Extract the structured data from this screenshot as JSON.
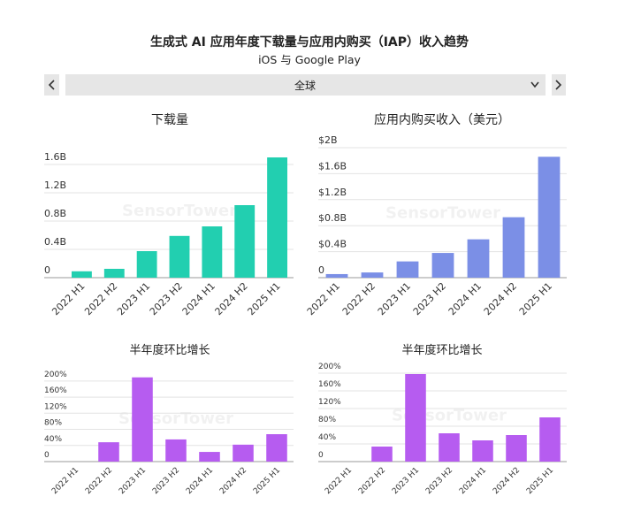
{
  "header": {
    "title": "生成式 AI 应用年度下载量与应用内购买（IAP）收入趋势",
    "subtitle": "iOS 与 Google Play"
  },
  "filter": {
    "region": "全球"
  },
  "watermark": "SensorTower",
  "chart_data": [
    {
      "type": "bar",
      "title": "下载量",
      "color": "#22cfb0",
      "categories": [
        "2022 H1",
        "2022 H2",
        "2023 H1",
        "2023 H2",
        "2024 H1",
        "2024 H2",
        "2025 H1"
      ],
      "values": [
        0.09,
        0.125,
        0.375,
        0.59,
        0.725,
        1.025,
        1.7
      ],
      "ylim": [
        0,
        1.9
      ],
      "yticks": [
        0,
        {
          "value": 0.4,
          "label": "0.4B"
        },
        {
          "value": 0.8,
          "label": "0.8B"
        },
        {
          "value": 1.2,
          "label": "1.2B"
        },
        {
          "value": 1.6,
          "label": "1.6B"
        }
      ],
      "grid": true
    },
    {
      "type": "bar",
      "title": "应用内购买收入（美元）",
      "color": "#7b8fe6",
      "categories": [
        "2022 H1",
        "2022 H2",
        "2023 H1",
        "2023 H2",
        "2024 H1",
        "2024 H2",
        "2025 H1"
      ],
      "values": [
        0.055,
        0.08,
        0.25,
        0.38,
        0.59,
        0.93,
        1.86
      ],
      "ylim": [
        0,
        2
      ],
      "yticks": [
        0,
        {
          "value": 0.4,
          "label": "$0.4B"
        },
        {
          "value": 0.8,
          "label": "$0.8B"
        },
        {
          "value": 1.2,
          "label": "$1.2B"
        },
        {
          "value": 1.6,
          "label": "$1.6B"
        },
        {
          "value": 2,
          "label": "$2B"
        }
      ],
      "grid": true
    },
    {
      "type": "bar",
      "title": "半年度环比增长",
      "color": "#b65cf0",
      "categories": [
        "2022 H1",
        "2022 H2",
        "2023 H1",
        "2023 H2",
        "2024 H1",
        "2024 H2",
        "2025 H1"
      ],
      "values": [
        null,
        48,
        209,
        55,
        24,
        42,
        68
      ],
      "ylim": [
        0,
        215
      ],
      "yticks": [
        0,
        {
          "value": 40,
          "label": "40%"
        },
        {
          "value": 80,
          "label": "80%"
        },
        {
          "value": 120,
          "label": "120%"
        },
        {
          "value": 160,
          "label": "160%"
        },
        {
          "value": 200,
          "label": "200%"
        }
      ],
      "grid": true
    },
    {
      "type": "bar",
      "title": "半年度环比增长",
      "color": "#b65cf0",
      "categories": [
        "2022 H1",
        "2022 H2",
        "2023 H1",
        "2023 H2",
        "2024 H1",
        "2024 H2",
        "2025 H1"
      ],
      "values": [
        null,
        34,
        198,
        64,
        48,
        60,
        100
      ],
      "ylim": [
        0,
        210
      ],
      "yticks": [
        0,
        {
          "value": 40,
          "label": "40%"
        },
        {
          "value": 80,
          "label": "80%"
        },
        {
          "value": 120,
          "label": "120%"
        },
        {
          "value": 160,
          "label": "160%"
        },
        {
          "value": 200,
          "label": "200%"
        }
      ],
      "grid": true
    }
  ]
}
